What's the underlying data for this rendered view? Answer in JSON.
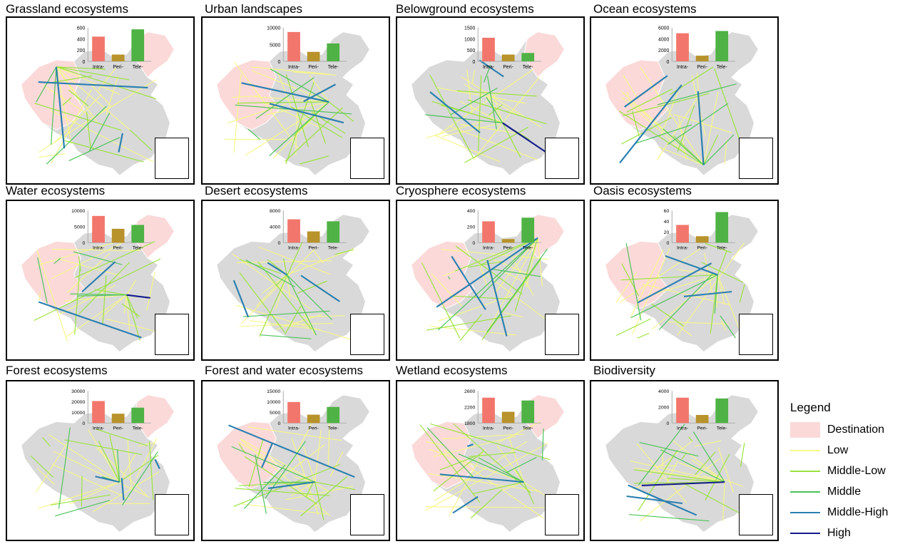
{
  "legend": {
    "title": "Legend",
    "items": [
      {
        "label": "Destination",
        "color": "#fbd9d9",
        "kind": "area"
      },
      {
        "label": "Low",
        "color": "#f7f78a",
        "kind": "line"
      },
      {
        "label": "Middle-Low",
        "color": "#9be33c",
        "kind": "line"
      },
      {
        "label": "Middle",
        "color": "#4cc35a",
        "kind": "line"
      },
      {
        "label": "Middle-High",
        "color": "#2a7fb0",
        "kind": "line"
      },
      {
        "label": "High",
        "color": "#141c8c",
        "kind": "line"
      }
    ]
  },
  "bar_colors": [
    "#f2766c",
    "#b8922a",
    "#4fb244"
  ],
  "chart_data": [
    {
      "type": "bar",
      "title": "Grassland ecosystems",
      "categories": [
        "Intra-",
        "Peri-",
        "Tele-"
      ],
      "values": [
        440,
        120,
        570
      ],
      "ylim": [
        0,
        600
      ],
      "yticks": [
        "0",
        "200",
        "400",
        "600"
      ]
    },
    {
      "type": "bar",
      "title": "Urban landscapes",
      "categories": [
        "Intra-",
        "Peri-",
        "Tele-"
      ],
      "values": [
        8700,
        2800,
        5300
      ],
      "ylim": [
        0,
        10000
      ],
      "yticks": [
        "0",
        "5000",
        "10000"
      ]
    },
    {
      "type": "bar",
      "title": "Belowground ecosystems",
      "categories": [
        "Intra-",
        "Peri-",
        "Tele-"
      ],
      "values": [
        1050,
        300,
        370
      ],
      "ylim": [
        0,
        1500
      ],
      "yticks": [
        "0",
        "500",
        "1000",
        "1500"
      ]
    },
    {
      "type": "bar",
      "title": "Ocean ecosystems",
      "categories": [
        "Intra-",
        "Peri-",
        "Tele-"
      ],
      "values": [
        5000,
        1000,
        5400
      ],
      "ylim": [
        0,
        6000
      ],
      "yticks": [
        "0",
        "2000",
        "4000",
        "6000"
      ]
    },
    {
      "type": "bar",
      "title": "Water ecosystems",
      "categories": [
        "Intra-",
        "Peri-",
        "Tele-"
      ],
      "values": [
        8300,
        4300,
        5500
      ],
      "ylim": [
        0,
        10000
      ],
      "yticks": [
        "0",
        "5000",
        "10000"
      ]
    },
    {
      "type": "bar",
      "title": "Desert ecosystems",
      "categories": [
        "Intra-",
        "Peri-",
        "Tele-"
      ],
      "values": [
        5800,
        2800,
        5300
      ],
      "ylim": [
        0,
        8000
      ],
      "yticks": [
        "0",
        "4000",
        "8000"
      ]
    },
    {
      "type": "bar",
      "title": "Cryosphere ecosystems",
      "categories": [
        "Intra-",
        "Peri-",
        "Tele-"
      ],
      "values": [
        265,
        45,
        310
      ],
      "ylim": [
        0,
        400
      ],
      "yticks": [
        "0",
        "200",
        "400"
      ]
    },
    {
      "type": "bar",
      "title": "Oasis ecosystems",
      "categories": [
        "Intra-",
        "Peri-",
        "Tele-"
      ],
      "values": [
        33,
        12,
        57
      ],
      "ylim": [
        0,
        60
      ],
      "yticks": [
        "0",
        "20",
        "40",
        "60"
      ]
    },
    {
      "type": "bar",
      "title": "Forest ecosystems",
      "categories": [
        "Intra-",
        "Peri-",
        "Tele-"
      ],
      "values": [
        20500,
        8700,
        14300
      ],
      "ylim": [
        0,
        30000
      ],
      "yticks": [
        "0",
        "10000",
        "20000",
        "30000"
      ]
    },
    {
      "type": "bar",
      "title": "Forest and water ecosystems",
      "categories": [
        "Intra-",
        "Peri-",
        "Tele-"
      ],
      "values": [
        9800,
        3900,
        7500
      ],
      "ylim": [
        0,
        15000
      ],
      "yticks": [
        "0",
        "5000",
        "10000",
        "15000"
      ]
    },
    {
      "type": "bar",
      "title": "Wetland ecosystems",
      "categories": [
        "Intra-",
        "Peri-",
        "Tele-"
      ],
      "values": [
        2430,
        2080,
        2360
      ],
      "ylim": [
        1800,
        2600
      ],
      "yticks": [
        "1800",
        "2200",
        "2600"
      ]
    },
    {
      "type": "bar",
      "title": "Biodiversity",
      "categories": [
        "Intra-",
        "Peri-",
        "Tele-"
      ],
      "values": [
        3150,
        1000,
        3050
      ],
      "ylim": [
        0,
        4000
      ],
      "yticks": [
        "0",
        "2000",
        "4000"
      ]
    }
  ]
}
